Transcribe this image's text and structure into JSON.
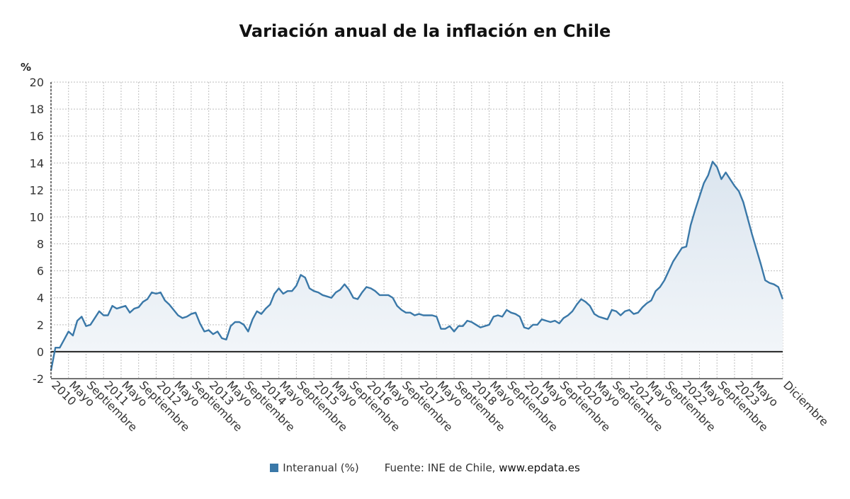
{
  "chart_data": {
    "type": "area",
    "title": "Variación anual de la inflación en Chile",
    "ylabel": "%",
    "xlabel": "",
    "ylim": [
      -2,
      20
    ],
    "yticks": [
      -2,
      0,
      2,
      4,
      6,
      8,
      10,
      12,
      14,
      16,
      18,
      20
    ],
    "grid": true,
    "legend_position": "bottom",
    "x_tick_labels": [
      {
        "label": "2010",
        "index": 0
      },
      {
        "label": "Mayo",
        "index": 4
      },
      {
        "label": "Septiembre",
        "index": 8
      },
      {
        "label": "2011",
        "index": 12
      },
      {
        "label": "Mayo",
        "index": 16
      },
      {
        "label": "Septiembre",
        "index": 20
      },
      {
        "label": "2012",
        "index": 24
      },
      {
        "label": "Mayo",
        "index": 28
      },
      {
        "label": "Septiembre",
        "index": 32
      },
      {
        "label": "2013",
        "index": 36
      },
      {
        "label": "Mayo",
        "index": 40
      },
      {
        "label": "Septiembre",
        "index": 44
      },
      {
        "label": "2014",
        "index": 48
      },
      {
        "label": "Mayo",
        "index": 52
      },
      {
        "label": "Septiembre",
        "index": 56
      },
      {
        "label": "2015",
        "index": 60
      },
      {
        "label": "Mayo",
        "index": 64
      },
      {
        "label": "Septiembre",
        "index": 68
      },
      {
        "label": "2016",
        "index": 72
      },
      {
        "label": "Mayo",
        "index": 76
      },
      {
        "label": "Septiembre",
        "index": 80
      },
      {
        "label": "2017",
        "index": 84
      },
      {
        "label": "Mayo",
        "index": 88
      },
      {
        "label": "Septiembre",
        "index": 92
      },
      {
        "label": "2018",
        "index": 96
      },
      {
        "label": "Mayo",
        "index": 100
      },
      {
        "label": "Septiembre",
        "index": 104
      },
      {
        "label": "2019",
        "index": 108
      },
      {
        "label": "Mayo",
        "index": 112
      },
      {
        "label": "Septiembre",
        "index": 116
      },
      {
        "label": "2020",
        "index": 120
      },
      {
        "label": "Mayo",
        "index": 124
      },
      {
        "label": "Septiembre",
        "index": 128
      },
      {
        "label": "2021",
        "index": 132
      },
      {
        "label": "Mayo",
        "index": 136
      },
      {
        "label": "Septiembre",
        "index": 140
      },
      {
        "label": "2022",
        "index": 144
      },
      {
        "label": "Mayo",
        "index": 148
      },
      {
        "label": "Septiembre",
        "index": 152
      },
      {
        "label": "2023",
        "index": 156
      },
      {
        "label": "Mayo",
        "index": 160
      },
      {
        "label": "Diciembre",
        "index": 167
      }
    ],
    "series": [
      {
        "name": "Interanual (%)",
        "color": "#3a78a8",
        "values": [
          -1.4,
          0.3,
          0.3,
          0.9,
          1.5,
          1.2,
          2.3,
          2.6,
          1.9,
          2.0,
          2.5,
          3.0,
          2.7,
          2.7,
          3.4,
          3.2,
          3.3,
          3.4,
          2.9,
          3.2,
          3.3,
          3.7,
          3.9,
          4.4,
          4.3,
          4.4,
          3.8,
          3.5,
          3.1,
          2.7,
          2.5,
          2.6,
          2.8,
          2.9,
          2.1,
          1.5,
          1.6,
          1.3,
          1.5,
          1.0,
          0.9,
          1.9,
          2.2,
          2.2,
          2.0,
          1.5,
          2.4,
          3.0,
          2.8,
          3.2,
          3.5,
          4.3,
          4.7,
          4.3,
          4.5,
          4.5,
          4.9,
          5.7,
          5.5,
          4.7,
          4.5,
          4.4,
          4.2,
          4.1,
          4.0,
          4.4,
          4.6,
          5.0,
          4.6,
          4.0,
          3.9,
          4.4,
          4.8,
          4.7,
          4.5,
          4.2,
          4.2,
          4.2,
          4.0,
          3.4,
          3.1,
          2.9,
          2.9,
          2.7,
          2.8,
          2.7,
          2.7,
          2.7,
          2.6,
          1.7,
          1.7,
          1.9,
          1.5,
          1.9,
          1.9,
          2.3,
          2.2,
          2.0,
          1.8,
          1.9,
          2.0,
          2.6,
          2.7,
          2.6,
          3.1,
          2.9,
          2.8,
          2.6,
          1.8,
          1.7,
          2.0,
          2.0,
          2.4,
          2.3,
          2.2,
          2.3,
          2.1,
          2.5,
          2.7,
          3.0,
          3.5,
          3.9,
          3.7,
          3.4,
          2.8,
          2.6,
          2.5,
          2.4,
          3.1,
          3.0,
          2.7,
          3.0,
          3.1,
          2.8,
          2.9,
          3.3,
          3.6,
          3.8,
          4.5,
          4.8,
          5.3,
          6.0,
          6.7,
          7.2,
          7.7,
          7.8,
          9.4,
          10.5,
          11.5,
          12.5,
          13.1,
          14.1,
          13.7,
          12.8,
          13.3,
          12.8,
          12.3,
          11.9,
          11.1,
          9.9,
          8.7,
          7.6,
          6.5,
          5.3,
          5.1,
          5.0,
          4.8,
          3.9
        ]
      }
    ],
    "source_text": "Fuente: INE de Chile, ",
    "source_site": "www.epdata.es"
  }
}
